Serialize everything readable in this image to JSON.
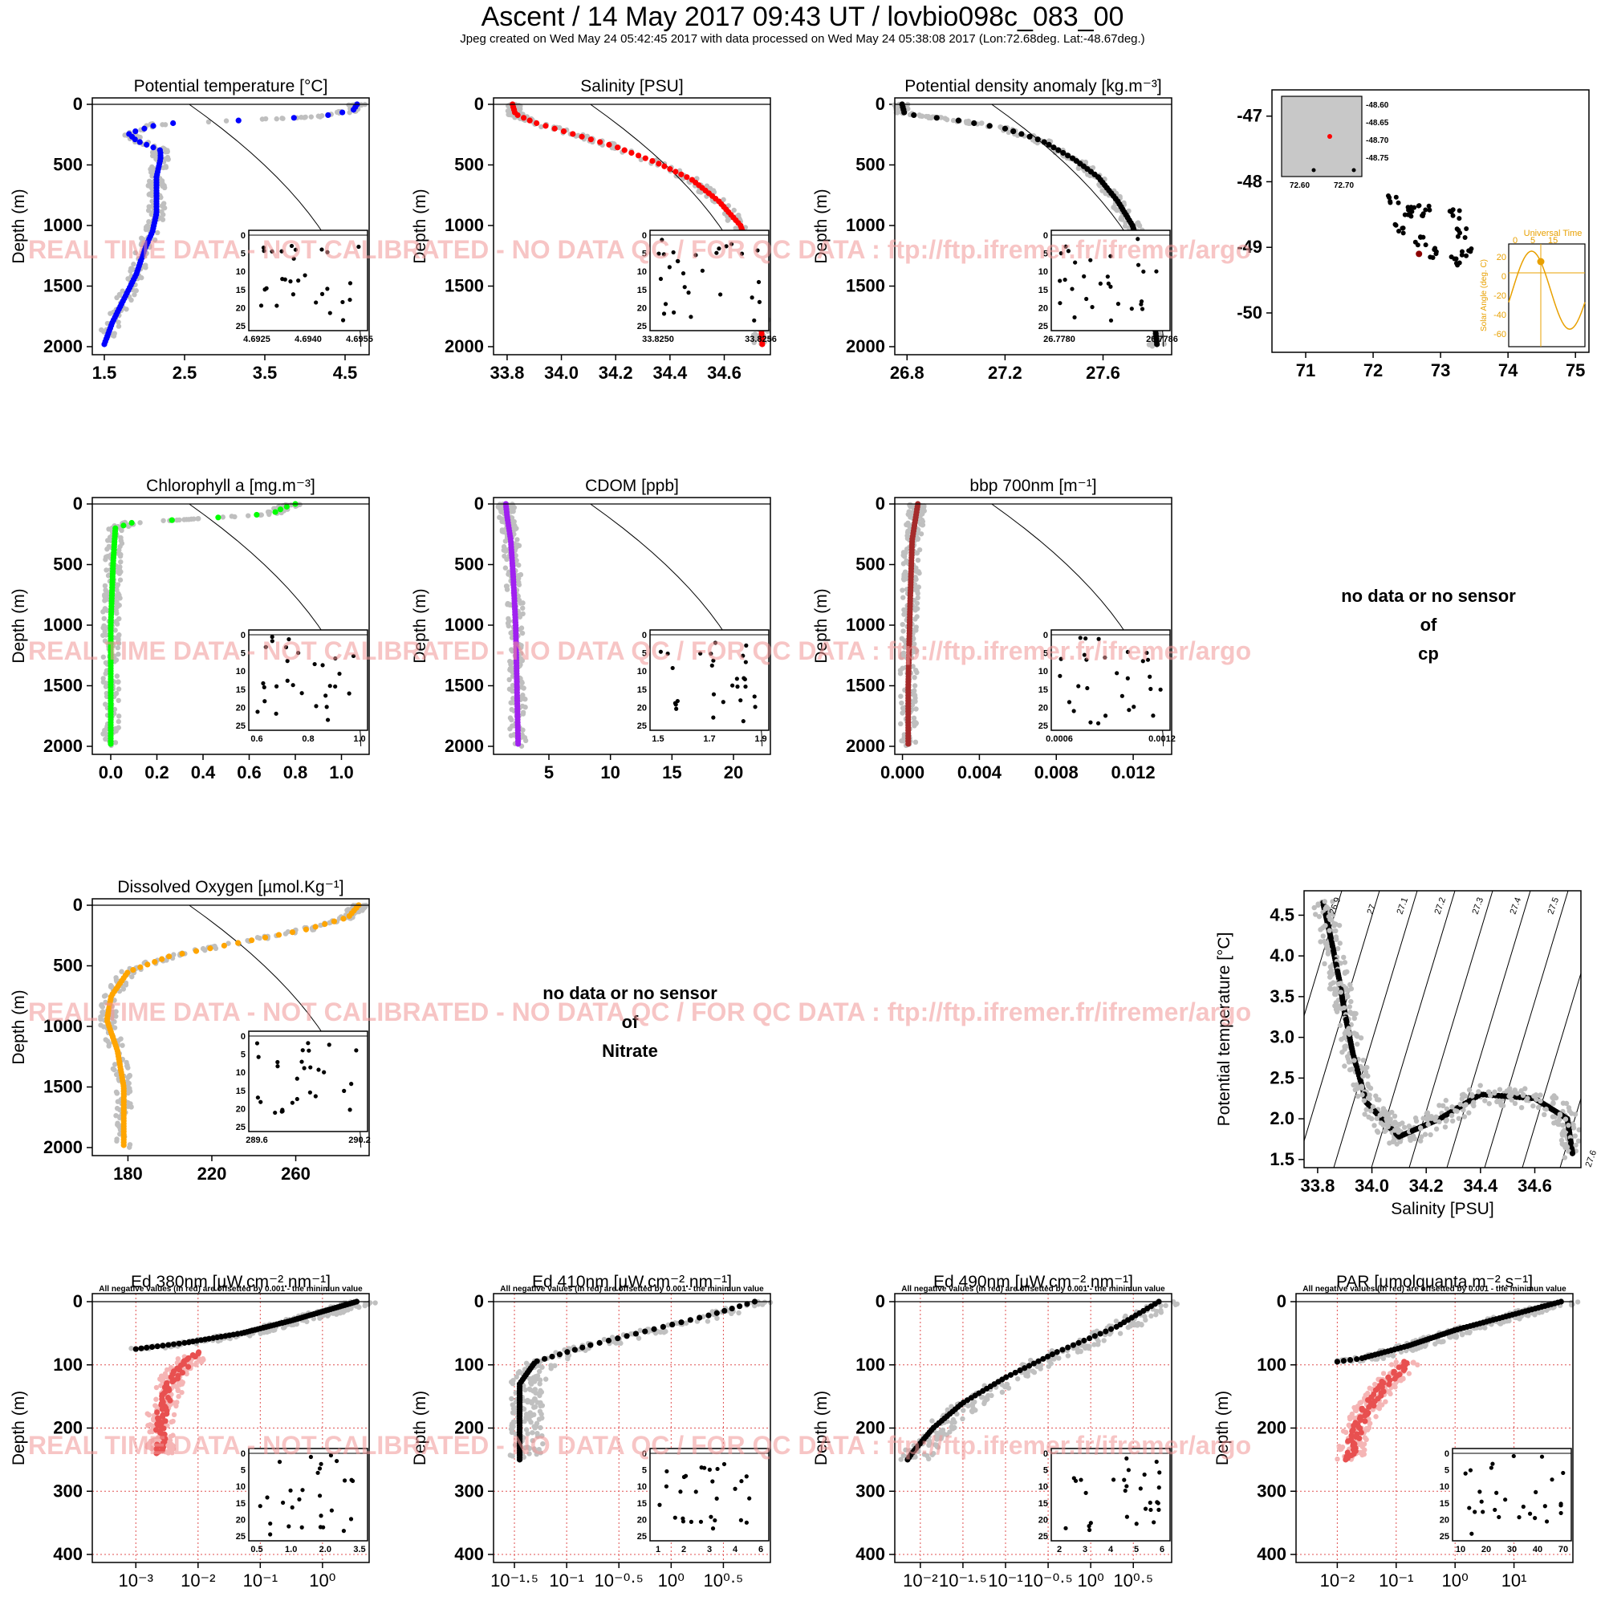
{
  "header": {
    "title": "Ascent / 14 May 2017 09:43 UT /  lovbio098c_083_00",
    "subtitle": "Jpeg created on Wed May 24 05:42:45 2017 with data processed on Wed May 24 05:38:08 2017 (Lon:72.68deg. Lat:-48.67deg.)"
  },
  "watermark": "REAL TIME DATA - NOT CALIBRATED - NO DATA QC  /  FOR QC DATA : ftp://ftp.ifremer.fr/ifremer/argo",
  "ed_note": "All negative values (in red) are offsetted by 0.001 - the minimun value",
  "no_data": [
    {
      "line1": "no data or no sensor",
      "line2": "of",
      "line3": "cp"
    },
    {
      "line1": "no data or no sensor",
      "line2": "of",
      "line3": "Nitrate"
    }
  ],
  "map_inset": {
    "yticks": [
      "-48.60",
      "-48.65",
      "-48.70",
      "-48.75"
    ],
    "xticks": [
      "72.60",
      "72.70"
    ]
  },
  "solar_inset": {
    "title": "Universal Time",
    "xticks": [
      "0",
      "5",
      "15"
    ],
    "ylabel": "Solar Angle (deg. C)",
    "yticks": [
      "20",
      "0",
      "-20",
      "-40",
      "-60"
    ]
  },
  "chart_data": [
    {
      "id": "temp",
      "type": "scatter",
      "title": "Potential temperature [°C]",
      "ylabel": "Depth (m)",
      "color": "#0000ff",
      "xlim": [
        1.35,
        4.8
      ],
      "ylim": [
        2000,
        0
      ],
      "xticks": [
        "1.5",
        "2.5",
        "3.5",
        "4.5"
      ],
      "xtickvals": [
        1.5,
        2.5,
        3.5,
        4.5
      ],
      "yticks": [
        "0",
        "500",
        "1000",
        "1500",
        "2000"
      ],
      "profile": [
        [
          4.65,
          0
        ],
        [
          4.6,
          50
        ],
        [
          4.2,
          100
        ],
        [
          3.3,
          130
        ],
        [
          2.2,
          160
        ],
        [
          1.8,
          240
        ],
        [
          1.9,
          300
        ],
        [
          2.2,
          380
        ],
        [
          2.2,
          450
        ],
        [
          2.15,
          600
        ],
        [
          2.15,
          900
        ],
        [
          2.1,
          1050
        ],
        [
          2.0,
          1200
        ],
        [
          1.9,
          1400
        ],
        [
          1.75,
          1600
        ],
        [
          1.6,
          1800
        ],
        [
          1.5,
          1980
        ]
      ],
      "inset": {
        "xticks": [
          "4.6925",
          "4.6940",
          "4.6955"
        ],
        "yticks": [
          "0",
          "5",
          "10",
          "15",
          "20",
          "25"
        ]
      }
    },
    {
      "id": "sal",
      "type": "scatter",
      "title": "Salinity [PSU]",
      "ylabel": "Depth (m)",
      "color": "#ff0000",
      "xlim": [
        33.75,
        34.77
      ],
      "ylim": [
        2000,
        0
      ],
      "xticks": [
        "33.8",
        "34.0",
        "34.2",
        "34.4",
        "34.6"
      ],
      "xtickvals": [
        33.8,
        34.0,
        34.2,
        34.4,
        34.6
      ],
      "yticks": [
        "0",
        "500",
        "1000",
        "1500",
        "2000"
      ],
      "profile": [
        [
          33.82,
          0
        ],
        [
          33.83,
          80
        ],
        [
          33.9,
          150
        ],
        [
          34.05,
          250
        ],
        [
          34.2,
          350
        ],
        [
          34.35,
          480
        ],
        [
          34.48,
          620
        ],
        [
          34.58,
          800
        ],
        [
          34.66,
          1000
        ],
        [
          34.71,
          1300
        ],
        [
          34.73,
          1600
        ],
        [
          34.74,
          1980
        ]
      ],
      "inset": {
        "xticks": [
          "33.8250",
          "33.8256"
        ],
        "yticks": [
          "0",
          "5",
          "10",
          "15",
          "20",
          "25"
        ]
      }
    },
    {
      "id": "dens",
      "type": "scatter",
      "title": "Potential density anomaly [kg.m⁻³]",
      "ylabel": "Depth (m)",
      "color": "#000000",
      "xlim": [
        26.75,
        27.88
      ],
      "ylim": [
        2000,
        0
      ],
      "xticks": [
        "26.8",
        "27.2",
        "27.6"
      ],
      "xtickvals": [
        26.8,
        27.2,
        27.6
      ],
      "yticks": [
        "0",
        "500",
        "1000",
        "1500",
        "2000"
      ],
      "profile": [
        [
          26.78,
          0
        ],
        [
          26.79,
          80
        ],
        [
          27.0,
          130
        ],
        [
          27.2,
          200
        ],
        [
          27.35,
          300
        ],
        [
          27.48,
          450
        ],
        [
          27.58,
          600
        ],
        [
          27.66,
          800
        ],
        [
          27.72,
          1000
        ],
        [
          27.77,
          1300
        ],
        [
          27.8,
          1600
        ],
        [
          27.82,
          1980
        ]
      ],
      "inset": {
        "xticks": [
          "26.7780",
          "26.7786"
        ],
        "yticks": [
          "0",
          "5",
          "10",
          "15",
          "20",
          "25"
        ]
      }
    },
    {
      "id": "map",
      "type": "scatter",
      "title": "",
      "xlim": [
        70.5,
        75.2
      ],
      "ylim": [
        -50.6,
        -46.6
      ],
      "xticks": [
        "71",
        "72",
        "73",
        "74",
        "75"
      ],
      "xtickvals": [
        71,
        72,
        73,
        74,
        75
      ],
      "yticks": [
        "-47",
        "-48",
        "-49",
        "-50"
      ],
      "ytickvals": [
        -47,
        -48,
        -49,
        -50
      ],
      "track": [
        [
          72.3,
          -48.3
        ],
        [
          72.6,
          -48.4
        ],
        [
          72.8,
          -48.45
        ],
        [
          73.2,
          -48.5
        ],
        [
          73.3,
          -48.8
        ],
        [
          73.4,
          -49.1
        ],
        [
          73.2,
          -49.2
        ],
        [
          72.9,
          -49.1
        ],
        [
          72.7,
          -48.9
        ],
        [
          72.4,
          -48.7
        ],
        [
          72.5,
          -48.5
        ]
      ]
    },
    {
      "id": "chla",
      "type": "scatter",
      "title": "Chlorophyll a [mg.m⁻³]",
      "ylabel": "Depth (m)",
      "color": "#00ff00",
      "xlim": [
        -0.08,
        1.12
      ],
      "ylim": [
        2000,
        0
      ],
      "xticks": [
        "0.0",
        "0.2",
        "0.4",
        "0.6",
        "0.8",
        "1.0"
      ],
      "xtickvals": [
        0,
        0.2,
        0.4,
        0.6,
        0.8,
        1.0
      ],
      "yticks": [
        "0",
        "500",
        "1000",
        "1500",
        "2000"
      ],
      "profile": [
        [
          0.8,
          0
        ],
        [
          0.75,
          30
        ],
        [
          0.7,
          80
        ],
        [
          0.4,
          120
        ],
        [
          0.1,
          150
        ],
        [
          0.02,
          200
        ],
        [
          0.01,
          500
        ],
        [
          0.0,
          1000
        ],
        [
          0.0,
          1500
        ],
        [
          0.0,
          1980
        ]
      ],
      "inset": {
        "xticks": [
          "0.6",
          "0.8",
          "1.0"
        ],
        "yticks": [
          "0",
          "5",
          "10",
          "15",
          "20",
          "25"
        ]
      }
    },
    {
      "id": "cdom",
      "type": "scatter",
      "title": "CDOM [ppb]",
      "ylabel": "Depth (m)",
      "color": "#a020f0",
      "xlim": [
        0.5,
        23
      ],
      "ylim": [
        2000,
        0
      ],
      "xticks": [
        "5",
        "10",
        "15",
        "20"
      ],
      "xtickvals": [
        5,
        10,
        15,
        20
      ],
      "yticks": [
        "0",
        "500",
        "1000",
        "1500",
        "2000"
      ],
      "profile": [
        [
          1.5,
          0
        ],
        [
          1.6,
          100
        ],
        [
          1.9,
          300
        ],
        [
          2.1,
          600
        ],
        [
          2.3,
          1000
        ],
        [
          2.4,
          1500
        ],
        [
          2.5,
          1980
        ]
      ],
      "inset": {
        "xticks": [
          "1.5",
          "1.7",
          "1.9"
        ],
        "yticks": [
          "0",
          "5",
          "10",
          "15",
          "20",
          "25"
        ]
      }
    },
    {
      "id": "bbp",
      "type": "scatter",
      "title": "bbp 700nm [m⁻¹]",
      "ylabel": "Depth (m)",
      "color": "#a52a2a",
      "xlim": [
        -0.0004,
        0.014
      ],
      "ylim": [
        2000,
        0
      ],
      "xticks": [
        "0.000",
        "0.004",
        "0.008",
        "0.012"
      ],
      "xtickvals": [
        0,
        0.004,
        0.008,
        0.012
      ],
      "yticks": [
        "0",
        "500",
        "1000",
        "1500",
        "2000"
      ],
      "profile": [
        [
          0.0008,
          0
        ],
        [
          0.0007,
          100
        ],
        [
          0.0005,
          300
        ],
        [
          0.0004,
          800
        ],
        [
          0.0003,
          1500
        ],
        [
          0.0003,
          1980
        ]
      ],
      "inset": {
        "xticks": [
          "0.0006",
          "0.0012"
        ],
        "yticks": [
          "0",
          "5",
          "10",
          "15",
          "20",
          "25"
        ]
      }
    },
    {
      "id": "oxy",
      "type": "scatter",
      "title": "Dissolved Oxygen [µmol.Kg⁻¹]",
      "ylabel": "Depth (m)",
      "color": "#ffa500",
      "xlim": [
        163,
        295
      ],
      "ylim": [
        2000,
        0
      ],
      "xticks": [
        "180",
        "220",
        "260"
      ],
      "xtickvals": [
        180,
        220,
        260
      ],
      "yticks": [
        "0",
        "500",
        "1000",
        "1500",
        "2000"
      ],
      "profile": [
        [
          290,
          0
        ],
        [
          285,
          100
        ],
        [
          265,
          200
        ],
        [
          230,
          320
        ],
        [
          200,
          420
        ],
        [
          180,
          550
        ],
        [
          172,
          750
        ],
        [
          170,
          950
        ],
        [
          175,
          1200
        ],
        [
          178,
          1500
        ],
        [
          178,
          1980
        ]
      ],
      "inset": {
        "xticks": [
          "289.6",
          "290.2"
        ],
        "yticks": [
          "0",
          "5",
          "10",
          "15",
          "20",
          "25"
        ]
      }
    },
    {
      "id": "ts",
      "type": "scatter",
      "title": "",
      "xlabel": "Salinity [PSU]",
      "ylabel": "Potential temperature [°C]",
      "xlim": [
        33.75,
        34.77
      ],
      "ylim": [
        1.4,
        4.8
      ],
      "xticks": [
        "33.8",
        "34.0",
        "34.2",
        "34.4",
        "34.6"
      ],
      "xtickvals": [
        33.8,
        34.0,
        34.2,
        34.4,
        34.6
      ],
      "yticks": [
        "1.5",
        "2.0",
        "2.5",
        "3.0",
        "3.5",
        "4.0",
        "4.5"
      ],
      "ytickvals": [
        1.5,
        2.0,
        2.5,
        3.0,
        3.5,
        4.0,
        4.5
      ],
      "isopycnals": [
        "26.9",
        "27",
        "27.1",
        "27.2",
        "27.3",
        "27.4",
        "27.5",
        "27.6",
        "27.7"
      ],
      "profile": [
        [
          33.82,
          4.65
        ],
        [
          33.85,
          4.2
        ],
        [
          33.88,
          3.7
        ],
        [
          33.9,
          3.3
        ],
        [
          33.93,
          2.8
        ],
        [
          33.98,
          2.2
        ],
        [
          34.05,
          1.95
        ],
        [
          34.1,
          1.78
        ],
        [
          34.25,
          2.0
        ],
        [
          34.4,
          2.3
        ],
        [
          34.6,
          2.25
        ],
        [
          34.72,
          2.0
        ],
        [
          34.74,
          1.55
        ]
      ]
    },
    {
      "id": "ed380",
      "type": "scatter",
      "title": "Ed 380nm [µW.cm⁻².nm⁻¹]",
      "ylabel": "Depth (m)",
      "log": true,
      "xlim": [
        -3.7,
        0.75
      ],
      "ylim": [
        400,
        0
      ],
      "xticks": [
        "10⁻³",
        "10⁻²",
        "10⁻¹",
        "10⁰"
      ],
      "xtickvals": [
        -3,
        -2,
        -1,
        0
      ],
      "yticks": [
        "0",
        "100",
        "200",
        "300",
        "400"
      ],
      "profile": [
        [
          0.55,
          0
        ],
        [
          0.2,
          10
        ],
        [
          -0.5,
          30
        ],
        [
          -1.3,
          50
        ],
        [
          -2.2,
          65
        ],
        [
          -3.0,
          75
        ]
      ],
      "neg": [
        [
          -2.0,
          80
        ],
        [
          -2.4,
          120
        ],
        [
          -2.6,
          180
        ],
        [
          -2.6,
          240
        ]
      ],
      "inset": {
        "xticks": [
          "0.5",
          "1.0",
          "2.0",
          "3.5"
        ],
        "yticks": [
          "0",
          "5",
          "10",
          "15",
          "20",
          "25"
        ]
      }
    },
    {
      "id": "ed410",
      "type": "scatter",
      "title": "Ed 410nm [µW.cm⁻².nm⁻¹]",
      "ylabel": "Depth (m)",
      "log": true,
      "xlim": [
        -1.7,
        0.95
      ],
      "ylim": [
        400,
        0
      ],
      "xticks": [
        "10⁻¹·⁵",
        "10⁻¹",
        "10⁻⁰·⁵",
        "10⁰",
        "10⁰·⁵"
      ],
      "xtickvals": [
        -1.5,
        -1,
        -0.5,
        0,
        0.5
      ],
      "yticks": [
        "0",
        "100",
        "200",
        "300",
        "400"
      ],
      "profile": [
        [
          0.8,
          0
        ],
        [
          0.4,
          20
        ],
        [
          -0.2,
          45
        ],
        [
          -0.8,
          70
        ],
        [
          -1.3,
          95
        ],
        [
          -1.45,
          130
        ],
        [
          -1.45,
          200
        ],
        [
          -1.45,
          250
        ]
      ],
      "inset": {
        "xticks": [
          "1",
          "2",
          "3",
          "4",
          "6"
        ],
        "yticks": [
          "0",
          "5",
          "10",
          "15",
          "20",
          "25"
        ]
      }
    },
    {
      "id": "ed490",
      "type": "scatter",
      "title": "Ed 490nm [µW.cm⁻².nm⁻¹]",
      "ylabel": "Depth (m)",
      "log": true,
      "xlim": [
        -2.3,
        0.95
      ],
      "ylim": [
        400,
        0
      ],
      "xticks": [
        "10⁻²",
        "10⁻¹·⁵",
        "10⁻¹",
        "10⁻⁰·⁵",
        "10⁰",
        "10⁰·⁵"
      ],
      "xtickvals": [
        -2,
        -1.5,
        -1,
        -0.5,
        0,
        0.5
      ],
      "yticks": [
        "0",
        "100",
        "200",
        "300",
        "400"
      ],
      "profile": [
        [
          0.8,
          0
        ],
        [
          0.3,
          40
        ],
        [
          -0.4,
          80
        ],
        [
          -1.0,
          120
        ],
        [
          -1.5,
          160
        ],
        [
          -1.85,
          200
        ],
        [
          -2.1,
          240
        ],
        [
          -2.15,
          250
        ]
      ],
      "inset": {
        "xticks": [
          "2",
          "3",
          "4",
          "5",
          "6"
        ],
        "yticks": [
          "0",
          "5",
          "10",
          "15",
          "20",
          "25"
        ]
      }
    },
    {
      "id": "par",
      "type": "scatter",
      "title": "PAR [µmolquanta.m⁻².s⁻¹]",
      "ylabel": "Depth (m)",
      "log": true,
      "xlim": [
        -2.7,
        2.0
      ],
      "ylim": [
        400,
        0
      ],
      "xticks": [
        "10⁻²",
        "10⁻¹",
        "10⁰",
        "10¹"
      ],
      "xtickvals": [
        -2,
        -1,
        0,
        1
      ],
      "yticks": [
        "0",
        "100",
        "200",
        "300",
        "400"
      ],
      "profile": [
        [
          1.8,
          0
        ],
        [
          1.0,
          20
        ],
        [
          0.0,
          45
        ],
        [
          -0.8,
          70
        ],
        [
          -1.6,
          90
        ],
        [
          -2.0,
          95
        ]
      ],
      "neg": [
        [
          -0.8,
          95
        ],
        [
          -1.2,
          130
        ],
        [
          -1.5,
          170
        ],
        [
          -1.7,
          210
        ],
        [
          -1.8,
          250
        ]
      ],
      "inset": {
        "xticks": [
          "10",
          "20",
          "30",
          "40",
          "70"
        ],
        "yticks": [
          "0",
          "5",
          "10",
          "15",
          "20",
          "25"
        ]
      }
    }
  ]
}
